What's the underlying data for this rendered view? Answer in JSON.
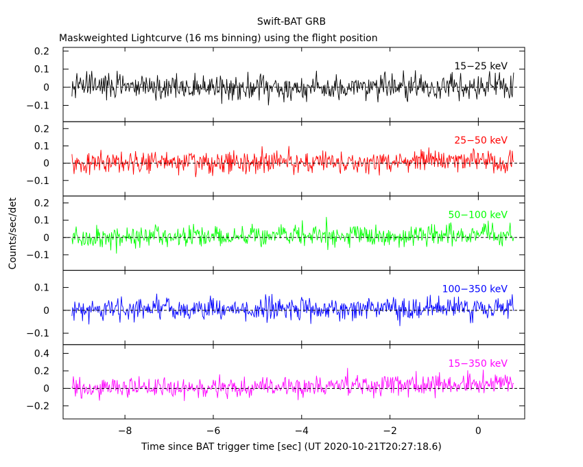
{
  "title": "Swift-BAT GRB",
  "subtitle": "Maskweighted Lightcurve (16 ms binning) using the flight position",
  "xlabel": "Time since BAT trigger time [sec] (UT 2020-10-21T20:27:18.6)",
  "ylabel": "Counts/sec/det",
  "chart_data": {
    "type": "line",
    "title": "Swift-BAT GRB",
    "subtitle": "Maskweighted Lightcurve (16 ms binning) using the flight position",
    "xlabel": "Time since BAT trigger time [sec] (UT 2020-10-21T20:27:18.6)",
    "ylabel": "Counts/sec/det",
    "xlim": [
      -9.4,
      1.05
    ],
    "x_range_data": [
      -9.2,
      0.8
    ],
    "bin_width_sec": 0.016,
    "x_ticks": [
      -8,
      -6,
      -4,
      -2,
      0
    ],
    "x_tick_labels": [
      "−8",
      "−6",
      "−4",
      "−2",
      "0"
    ],
    "grid": false,
    "panels": [
      {
        "name": "15-25 keV",
        "label": "15−25 keV",
        "color": "#000000",
        "ylim": [
          -0.19,
          0.22
        ],
        "y_ticks": [
          -0.1,
          0,
          0.1,
          0.2
        ],
        "y_tick_labels": [
          "−0.1",
          "0",
          "0.1",
          "0.2"
        ],
        "mean": 0.0,
        "noise_sigma": 0.065,
        "trend_end": 0.0
      },
      {
        "name": "25-50 keV",
        "label": "25−50 keV",
        "color": "#ff0000",
        "ylim": [
          -0.19,
          0.24
        ],
        "y_ticks": [
          -0.1,
          0,
          0.1,
          0.2
        ],
        "y_tick_labels": [
          "−0.1",
          "0",
          "0.1",
          "0.2"
        ],
        "mean": 0.0,
        "noise_sigma": 0.06,
        "trend_end": 0.015
      },
      {
        "name": "50-100 keV",
        "label": "50−100 keV",
        "color": "#00ff00",
        "ylim": [
          -0.19,
          0.24
        ],
        "y_ticks": [
          -0.1,
          0,
          0.1,
          0.2
        ],
        "y_tick_labels": [
          "−0.1",
          "0",
          "0.1",
          "0.2"
        ],
        "mean": 0.0,
        "noise_sigma": 0.055,
        "trend_end": 0.02
      },
      {
        "name": "100-350 keV",
        "label": "100−350 keV",
        "color": "#0000ff",
        "ylim": [
          -0.15,
          0.175
        ],
        "y_ticks": [
          -0.1,
          0,
          0.1
        ],
        "y_tick_labels": [
          "−0.1",
          "0",
          "0.1"
        ],
        "mean": 0.0,
        "noise_sigma": 0.045,
        "trend_end": 0.01
      },
      {
        "name": "15-350 keV",
        "label": "15−350 keV",
        "color": "#ff00ff",
        "ylim": [
          -0.35,
          0.5
        ],
        "y_ticks": [
          -0.2,
          0,
          0.2,
          0.4
        ],
        "y_tick_labels": [
          "−0.2",
          "0",
          "0.2",
          "0.4"
        ],
        "mean": 0.0,
        "noise_sigma": 0.11,
        "trend_end": 0.05
      }
    ]
  }
}
